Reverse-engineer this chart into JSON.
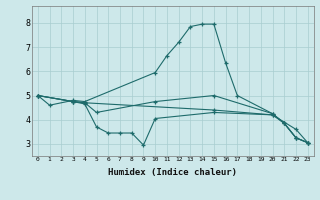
{
  "title": "",
  "xlabel": "Humidex (Indice chaleur)",
  "ylabel": "",
  "xlim": [
    -0.5,
    23.5
  ],
  "ylim": [
    2.5,
    8.7
  ],
  "xticks": [
    0,
    1,
    2,
    3,
    4,
    5,
    6,
    7,
    8,
    9,
    10,
    11,
    12,
    13,
    14,
    15,
    16,
    17,
    18,
    19,
    20,
    21,
    22,
    23
  ],
  "yticks": [
    3,
    4,
    5,
    6,
    7,
    8
  ],
  "background_color": "#cde8ea",
  "grid_color": "#a8cdd0",
  "line_color": "#1e6b6b",
  "lines": [
    {
      "x": [
        0,
        1,
        3,
        4,
        10,
        11,
        12,
        13,
        14,
        15,
        16,
        17,
        20,
        21,
        22,
        23
      ],
      "y": [
        5.0,
        4.6,
        4.8,
        4.75,
        5.95,
        6.65,
        7.2,
        7.85,
        7.95,
        7.95,
        6.35,
        5.0,
        4.25,
        3.85,
        3.25,
        3.05
      ]
    },
    {
      "x": [
        0,
        3,
        4,
        5,
        10,
        15,
        20,
        21,
        22,
        23
      ],
      "y": [
        5.0,
        4.75,
        4.7,
        4.3,
        4.75,
        5.0,
        4.25,
        3.85,
        3.25,
        3.05
      ]
    },
    {
      "x": [
        0,
        3,
        4,
        5,
        6,
        7,
        8,
        9,
        10,
        15,
        20,
        21,
        22,
        23
      ],
      "y": [
        5.0,
        4.75,
        4.65,
        3.7,
        3.45,
        3.45,
        3.45,
        2.95,
        4.05,
        4.3,
        4.2,
        3.85,
        3.25,
        3.05
      ]
    },
    {
      "x": [
        0,
        3,
        4,
        15,
        20,
        22,
        23
      ],
      "y": [
        5.0,
        4.75,
        4.7,
        4.4,
        4.2,
        3.6,
        3.05
      ]
    }
  ]
}
